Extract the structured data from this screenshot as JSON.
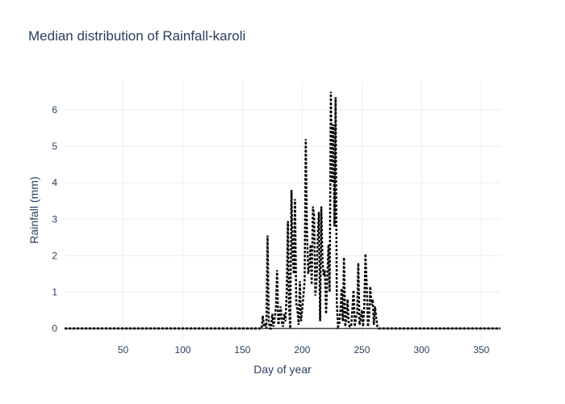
{
  "chart_data": {
    "type": "line",
    "title": "Median distribution of Rainfall-karoli",
    "xlabel": "Day of year",
    "ylabel": "Rainfall (mm)",
    "xlim": [
      1,
      366
    ],
    "ylim": [
      -0.3,
      6.8
    ],
    "xticks": [
      50,
      100,
      150,
      200,
      250,
      300,
      350
    ],
    "yticks": [
      0,
      1,
      2,
      3,
      4,
      5,
      6
    ],
    "grid": true,
    "legend": "none",
    "line_style": "dotted",
    "color": "#000000",
    "series": [
      {
        "x": [
          1,
          165,
          166,
          167,
          168,
          169,
          170,
          171,
          172,
          173,
          174,
          175,
          176,
          177,
          178,
          179,
          180,
          181,
          182,
          183,
          184,
          185,
          186,
          187,
          188,
          189,
          190,
          191,
          192,
          193,
          194,
          195,
          196,
          197,
          198,
          199,
          200,
          201,
          202,
          203,
          204,
          205,
          206,
          207,
          208,
          209,
          210,
          211,
          212,
          213,
          214,
          215,
          216,
          217,
          218,
          219,
          220,
          221,
          222,
          223,
          224,
          225,
          226,
          227,
          228,
          229,
          230,
          231,
          232,
          233,
          234,
          235,
          236,
          237,
          238,
          239,
          240,
          241,
          242,
          243,
          244,
          245,
          246,
          247,
          248,
          249,
          250,
          251,
          252,
          253,
          254,
          255,
          256,
          257,
          258,
          259,
          260,
          261,
          262,
          263,
          264,
          366
        ],
        "values": [
          0,
          0,
          0,
          0.35,
          0.05,
          0.1,
          0,
          2.55,
          0.2,
          0,
          0,
          0.4,
          0.05,
          0.3,
          0.6,
          1.6,
          0.1,
          0.3,
          0.6,
          0.15,
          0.05,
          0.4,
          0.2,
          1.0,
          2.95,
          0.6,
          0,
          3.8,
          2.0,
          1.5,
          3.55,
          0.7,
          0.5,
          0.1,
          1.3,
          0.2,
          0.5,
          0.9,
          1.3,
          5.2,
          2.7,
          1.5,
          1.7,
          2.3,
          1.2,
          3.35,
          3.1,
          0.9,
          1.3,
          2.5,
          3.2,
          0.2,
          3.35,
          1.8,
          1.45,
          1.6,
          0.4,
          1.4,
          2.3,
          1.0,
          6.5,
          4.0,
          5.6,
          2.8,
          6.35,
          0.7,
          0.05,
          0.1,
          0.5,
          1.1,
          0.2,
          1.95,
          0.05,
          0.3,
          0.8,
          0.1,
          0.05,
          0.05,
          0.5,
          1.05,
          0.05,
          0.3,
          0.4,
          1.8,
          0.1,
          0.25,
          0.5,
          0.05,
          0.6,
          2.05,
          1.2,
          0.05,
          0.3,
          1.15,
          0.65,
          0.8,
          0.1,
          0.6,
          0.3,
          0.05,
          0,
          0
        ]
      }
    ]
  }
}
